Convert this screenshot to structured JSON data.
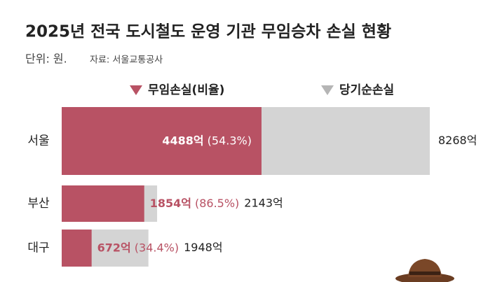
{
  "chart_data": {
    "type": "bar",
    "orientation": "horizontal",
    "title": "2025년 전국 도시철도 운영 기관 무임승차 손실 현황",
    "unit": "단위: 원.",
    "source": "자료: 서울교통공사",
    "categories": [
      "서울",
      "부산",
      "대구"
    ],
    "series": [
      {
        "name": "무임손실(비율)",
        "color": "#b85264",
        "values": [
          4488,
          1854,
          672
        ],
        "value_labels": [
          "4488억",
          "1854억",
          "672억"
        ],
        "percent": [
          54.3,
          86.5,
          34.4
        ],
        "percent_labels": [
          "(54.3%)",
          "(86.5%)",
          "(34.4%)"
        ]
      },
      {
        "name": "당기순손실",
        "color": "#d4d4d4",
        "values": [
          8268,
          2143,
          1948
        ],
        "value_labels": [
          "8268억",
          "2143억",
          "1948억"
        ]
      }
    ]
  }
}
